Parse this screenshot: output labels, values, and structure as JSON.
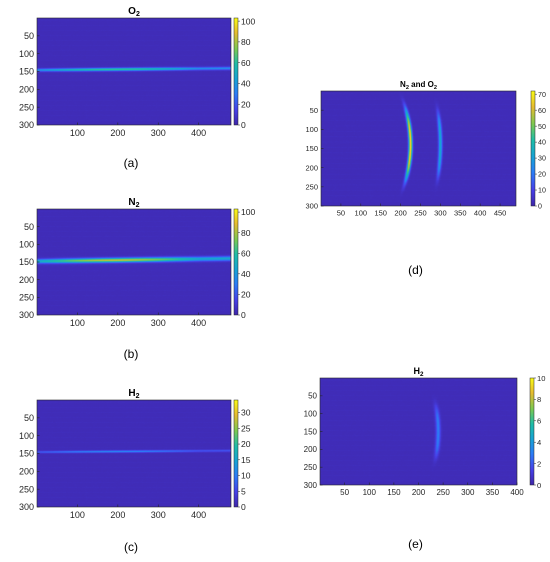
{
  "chart_data": [
    {
      "id": "a",
      "type": "heatmap",
      "title": "O",
      "title_sub": "2",
      "caption": "(a)",
      "x_ticks": [
        100,
        200,
        300,
        400
      ],
      "y_ticks": [
        50,
        100,
        150,
        200,
        250,
        300
      ],
      "xlim": [
        0,
        480
      ],
      "ylim": [
        300,
        0
      ],
      "colorbar_ticks": [
        0,
        20,
        40,
        60,
        80,
        100
      ],
      "colorbar_range": [
        0,
        103
      ],
      "features": [
        {
          "kind": "horizontal-line",
          "y_start": 146,
          "y_end": 141,
          "peak": 60,
          "width": 4
        }
      ]
    },
    {
      "id": "b",
      "type": "heatmap",
      "title": "N",
      "title_sub": "2",
      "caption": "(b)",
      "x_ticks": [
        100,
        200,
        300,
        400
      ],
      "y_ticks": [
        50,
        100,
        150,
        200,
        250,
        300
      ],
      "xlim": [
        0,
        480
      ],
      "ylim": [
        300,
        0
      ],
      "colorbar_ticks": [
        0,
        20,
        40,
        60,
        80,
        100
      ],
      "colorbar_range": [
        0,
        103
      ],
      "features": [
        {
          "kind": "horizontal-line",
          "y_start": 148,
          "y_end": 140,
          "peak": 80,
          "width": 6
        }
      ]
    },
    {
      "id": "c",
      "type": "heatmap",
      "title": "H",
      "title_sub": "2",
      "caption": "(c)",
      "x_ticks": [
        100,
        200,
        300,
        400
      ],
      "y_ticks": [
        50,
        100,
        150,
        200,
        250,
        300
      ],
      "xlim": [
        0,
        480
      ],
      "ylim": [
        300,
        0
      ],
      "colorbar_ticks": [
        0,
        5,
        10,
        15,
        20,
        25,
        30
      ],
      "colorbar_range": [
        0,
        34
      ],
      "features": [
        {
          "kind": "horizontal-line",
          "y_start": 146,
          "y_end": 142,
          "peak": 10,
          "width": 3
        }
      ]
    },
    {
      "id": "d",
      "type": "heatmap",
      "title": "N",
      "title_sub": "2",
      "title_suffix": " and O",
      "title_sub2": "2",
      "caption": "(d)",
      "x_ticks": [
        50,
        100,
        150,
        200,
        250,
        300,
        350,
        400,
        450
      ],
      "y_ticks": [
        50,
        100,
        150,
        200,
        250,
        300
      ],
      "xlim": [
        0,
        490
      ],
      "ylim": [
        300,
        0
      ],
      "colorbar_ticks": [
        0,
        10,
        20,
        30,
        40,
        50,
        60,
        70
      ],
      "colorbar_range": [
        0,
        72
      ],
      "features": [
        {
          "kind": "arc",
          "x_center": 225,
          "x_edge": 205,
          "y_top": 20,
          "y_bottom": 260,
          "peak": 65
        },
        {
          "kind": "arc",
          "x_center": 300,
          "x_edge": 290,
          "y_top": 30,
          "y_bottom": 250,
          "peak": 30
        }
      ]
    },
    {
      "id": "e",
      "type": "heatmap",
      "title": "H",
      "title_sub": "2",
      "caption": "(e)",
      "x_ticks": [
        50,
        100,
        150,
        200,
        250,
        300,
        350,
        400
      ],
      "y_ticks": [
        50,
        100,
        150,
        200,
        250,
        300
      ],
      "xlim": [
        0,
        400
      ],
      "ylim": [
        300,
        0
      ],
      "colorbar_ticks": [
        0,
        2,
        4,
        6,
        8,
        10
      ],
      "colorbar_range": [
        0,
        10
      ],
      "features": [
        {
          "kind": "arc",
          "x_center": 240,
          "x_edge": 232,
          "y_top": 55,
          "y_bottom": 245,
          "peak": 2.6
        }
      ]
    }
  ]
}
